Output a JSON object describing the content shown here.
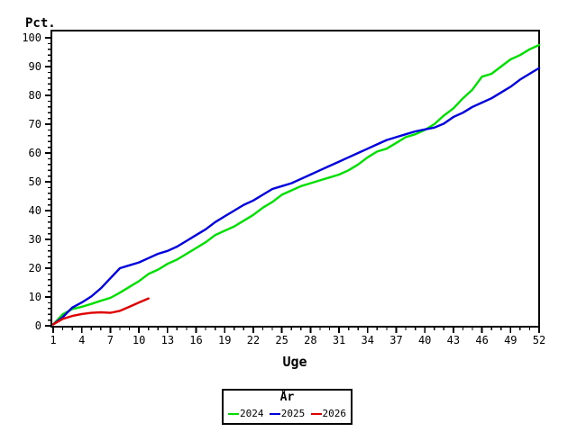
{
  "axes": {
    "y_label": "Pct.",
    "x_label": "Uge",
    "y_ticks": [
      0,
      10,
      20,
      30,
      40,
      50,
      60,
      70,
      80,
      90,
      100
    ],
    "x_ticks": [
      1,
      4,
      7,
      10,
      13,
      16,
      19,
      22,
      25,
      28,
      31,
      34,
      37,
      40,
      43,
      46,
      49,
      52
    ]
  },
  "legend": {
    "title": "År"
  },
  "chart_data": {
    "type": "line",
    "title": "",
    "xlabel": "Uge",
    "ylabel": "Pct.",
    "xlim": [
      1,
      52
    ],
    "ylim": [
      0,
      100
    ],
    "x_major_step": 3,
    "x_minor_step": 1,
    "y_major_step": 10,
    "y_minor_step": 2,
    "grid": false,
    "legend_position": "bottom",
    "legend_title": "År",
    "series": [
      {
        "name": "2024",
        "color": "#00e000",
        "x": [
          1,
          2,
          3,
          4,
          5,
          6,
          7,
          8,
          9,
          10,
          11,
          12,
          13,
          14,
          15,
          16,
          17,
          18,
          19,
          20,
          21,
          22,
          23,
          24,
          25,
          26,
          27,
          28,
          29,
          30,
          31,
          32,
          33,
          34,
          35,
          36,
          37,
          38,
          39,
          40,
          41,
          42,
          43,
          44,
          45,
          46,
          47,
          48,
          49,
          50,
          51,
          52
        ],
        "values": [
          0.5,
          4,
          5.8,
          6.6,
          7.6,
          8.7,
          9.7,
          11.5,
          13.5,
          15.5,
          18,
          19.5,
          21.5,
          23,
          25,
          27,
          29,
          31.5,
          33,
          34.5,
          36.5,
          38.5,
          41,
          43,
          45.5,
          47,
          48.5,
          49.5,
          50.5,
          51.5,
          52.5,
          54,
          56,
          58.5,
          60.5,
          61.5,
          63.5,
          65.5,
          66.5,
          68,
          70,
          73,
          75.5,
          79,
          82,
          86.5,
          87.5,
          90,
          92.5,
          94,
          96,
          97.5
        ]
      },
      {
        "name": "2025",
        "color": "#0000e0",
        "x": [
          1,
          2,
          3,
          4,
          5,
          6,
          7,
          8,
          9,
          10,
          11,
          12,
          13,
          14,
          15,
          16,
          17,
          18,
          19,
          20,
          21,
          22,
          23,
          24,
          25,
          26,
          27,
          28,
          29,
          30,
          31,
          32,
          33,
          34,
          35,
          36,
          37,
          38,
          39,
          40,
          41,
          42,
          43,
          44,
          45,
          46,
          47,
          48,
          49,
          50,
          51,
          52
        ],
        "values": [
          0.5,
          3,
          6.3,
          8.1,
          10.2,
          13,
          16.5,
          20,
          21,
          22,
          23.5,
          25,
          26,
          27.5,
          29.5,
          31.5,
          33.5,
          36,
          38,
          40,
          42,
          43.5,
          45.5,
          47.5,
          48.5,
          49.5,
          51,
          52.5,
          54,
          55.5,
          57,
          58.5,
          60,
          61.5,
          63,
          64.5,
          65.5,
          66.5,
          67.5,
          68.2,
          68.8,
          70.2,
          72.5,
          74,
          76,
          77.5,
          79,
          81,
          83,
          85.5,
          87.5,
          89.5
        ]
      },
      {
        "name": "2026",
        "color": "#e00000",
        "x": [
          1,
          2,
          3,
          4,
          5,
          6,
          7,
          8,
          9,
          10,
          11
        ],
        "values": [
          0.5,
          2.4,
          3.4,
          4.1,
          4.5,
          4.7,
          4.5,
          5.2,
          6.6,
          8.1,
          9.5
        ]
      }
    ]
  }
}
